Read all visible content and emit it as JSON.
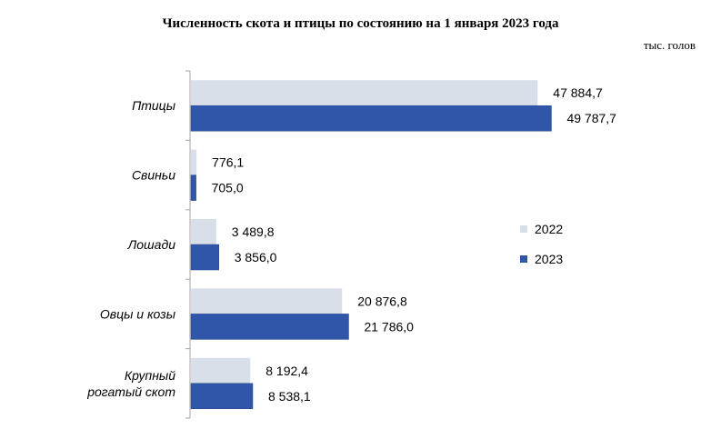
{
  "chart_data": {
    "type": "bar",
    "orientation": "horizontal",
    "title": "Численность скота и птицы по состоянию на 1 января 2023 года",
    "unit": "тыс. голов",
    "categories": [
      [
        "Птицы"
      ],
      [
        "Свиньи"
      ],
      [
        "Лошади"
      ],
      [
        "Овцы и козы"
      ],
      [
        "Крупный",
        "рогатый скот"
      ]
    ],
    "series": [
      {
        "name": "2022",
        "color": "#d9dfe8",
        "values": [
          47884.7,
          776.1,
          3489.8,
          20876.8,
          8192.4
        ],
        "labels": [
          "47 884,7",
          "776,1",
          "3 489,8",
          "20 876,8",
          "8 192,4"
        ]
      },
      {
        "name": "2023",
        "color": "#2f56a8",
        "values": [
          49787.7,
          705.0,
          3856.0,
          21786.0,
          8538.1
        ],
        "labels": [
          "49 787,7",
          "705,0",
          "3 856,0",
          "21 786,0",
          "8 538,1"
        ]
      }
    ],
    "xlim": [
      0,
      54000
    ],
    "legend": "right",
    "grid": false
  }
}
